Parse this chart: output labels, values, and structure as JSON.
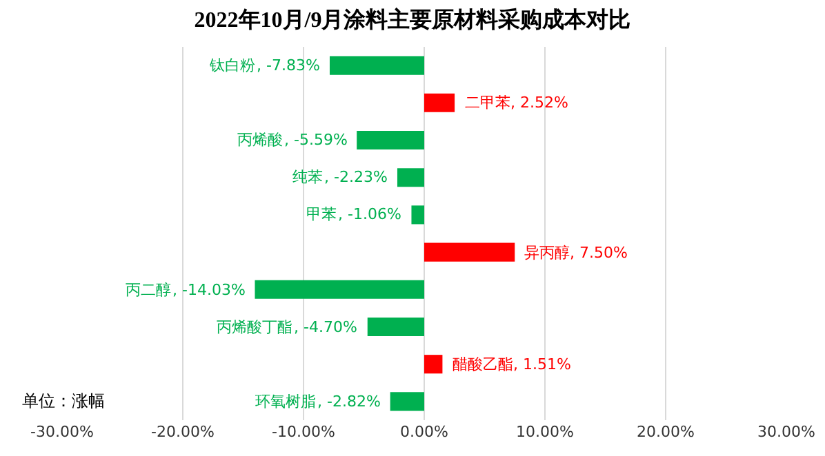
{
  "chart_data": {
    "type": "bar",
    "orientation": "horizontal",
    "title": "2022年10月/9月涂料主要原材料采购成本对比",
    "categories": [
      "钛白粉",
      "二甲苯",
      "丙烯酸",
      "纯苯",
      "甲苯",
      "异丙醇",
      "丙二醇",
      "丙烯酸丁酯",
      "醋酸乙酯",
      "环氧树脂"
    ],
    "values": [
      -7.83,
      2.52,
      -5.59,
      -2.23,
      -1.06,
      7.5,
      -14.03,
      -4.7,
      1.51,
      -2.82
    ],
    "colors": [
      "#00b050",
      "#ff0000",
      "#00b050",
      "#00b050",
      "#00b050",
      "#ff0000",
      "#00b050",
      "#00b050",
      "#ff0000",
      "#00b050"
    ],
    "value_labels": [
      ", -7.83%",
      ", 2.52%",
      ", -5.59%",
      ", -2.23%",
      ", -1.06%",
      ", 7.50%",
      ", -14.03%",
      ", -4.70%",
      ", 1.51%",
      ", -2.82%"
    ],
    "xlim": [
      -30,
      30
    ],
    "xticks": [
      {
        "value": -30,
        "label": "-30.00%"
      },
      {
        "value": -20,
        "label": "-20.00%"
      },
      {
        "value": -10,
        "label": "-10.00%"
      },
      {
        "value": 0,
        "label": "0.00%"
      },
      {
        "value": 10,
        "label": "10.00%"
      },
      {
        "value": 20,
        "label": "20.00%"
      },
      {
        "value": 30,
        "label": "30.00%"
      }
    ],
    "grid": "x",
    "tick_labels": "x",
    "annotations": [
      "单位：涨幅"
    ]
  }
}
